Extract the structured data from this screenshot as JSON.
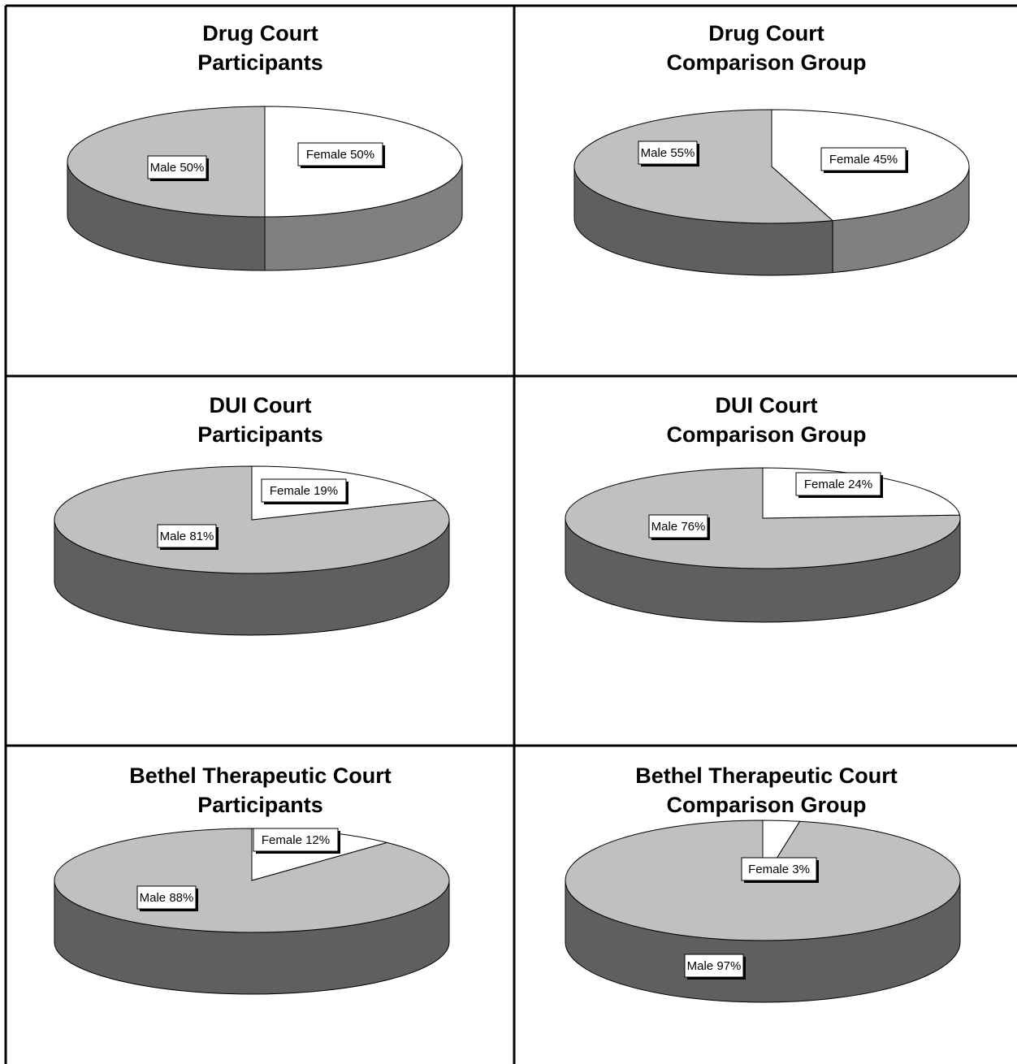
{
  "chart_data": [
    {
      "type": "pie",
      "title_line1": "Drug Court",
      "title_line2": "Participants",
      "slices": [
        {
          "name": "Male",
          "value": 50,
          "label": "Male 50%"
        },
        {
          "name": "Female",
          "value": 50,
          "label": "Female 50%"
        }
      ],
      "colors": {
        "male_top": "#c0c0c0",
        "male_side": "#5f5f5f",
        "female_top": "#ffffff",
        "female_side": "#808080"
      }
    },
    {
      "type": "pie",
      "title_line1": "Drug Court",
      "title_line2": "Comparison Group",
      "slices": [
        {
          "name": "Male",
          "value": 55,
          "label": "Male 55%"
        },
        {
          "name": "Female",
          "value": 45,
          "label": "Female 45%"
        }
      ],
      "colors": {
        "male_top": "#c0c0c0",
        "male_side": "#5f5f5f",
        "female_top": "#ffffff",
        "female_side": "#808080"
      }
    },
    {
      "type": "pie",
      "title_line1": "DUI Court",
      "title_line2": "Participants",
      "slices": [
        {
          "name": "Male",
          "value": 81,
          "label": "Male 81%"
        },
        {
          "name": "Female",
          "value": 19,
          "label": "Female 19%"
        }
      ],
      "colors": {
        "male_top": "#c0c0c0",
        "male_side": "#5f5f5f",
        "female_top": "#ffffff",
        "female_side": "#808080"
      }
    },
    {
      "type": "pie",
      "title_line1": "DUI Court",
      "title_line2": "Comparison Group",
      "slices": [
        {
          "name": "Male",
          "value": 76,
          "label": "Male 76%"
        },
        {
          "name": "Female",
          "value": 24,
          "label": "Female 24%"
        }
      ],
      "colors": {
        "male_top": "#c0c0c0",
        "male_side": "#5f5f5f",
        "female_top": "#ffffff",
        "female_side": "#808080"
      }
    },
    {
      "type": "pie",
      "title_line1": "Bethel Therapeutic Court",
      "title_line2": "Participants",
      "slices": [
        {
          "name": "Male",
          "value": 88,
          "label": "Male 88%"
        },
        {
          "name": "Female",
          "value": 12,
          "label": "Female 12%"
        }
      ],
      "colors": {
        "male_top": "#c0c0c0",
        "male_side": "#5f5f5f",
        "female_top": "#ffffff",
        "female_side": "#808080"
      }
    },
    {
      "type": "pie",
      "title_line1": "Bethel Therapeutic Court",
      "title_line2": "Comparison Group",
      "slices": [
        {
          "name": "Male",
          "value": 97,
          "label": "Male 97%"
        },
        {
          "name": "Female",
          "value": 3,
          "label": "Female 3%"
        }
      ],
      "colors": {
        "male_top": "#c0c0c0",
        "male_side": "#5f5f5f",
        "female_top": "#ffffff",
        "female_side": "#808080"
      }
    }
  ]
}
